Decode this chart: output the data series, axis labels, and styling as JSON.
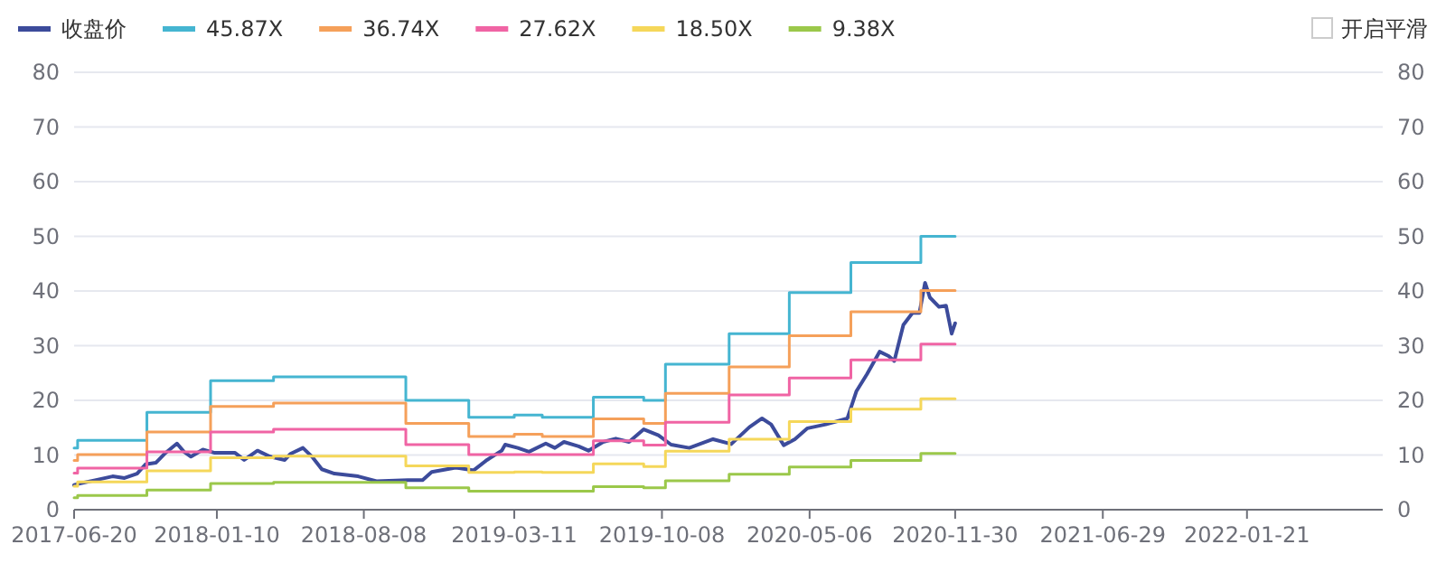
{
  "chart_data": {
    "type": "line",
    "x": [
      "2017-06-20",
      "2017-06-25",
      "2017-10-02",
      "2018-01-01",
      "2018-04-01",
      "2018-10-07",
      "2019-01-05",
      "2019-03-11",
      "2019-04-20",
      "2019-07-02",
      "2019-09-12",
      "2019-10-13",
      "2020-01-12",
      "2020-04-07",
      "2020-07-04",
      "2020-10-12",
      "2020-11-30"
    ],
    "series": [
      {
        "name": "收盘价",
        "type": "line",
        "color": "#3c4b9b",
        "x": [
          "2017-06-20",
          "2017-06-25",
          "2017-07-20",
          "2017-08-14",
          "2017-08-31",
          "2017-09-18",
          "2017-09-30",
          "2017-10-15",
          "2017-10-27",
          "2017-11-14",
          "2017-11-24",
          "2017-12-04",
          "2017-12-21",
          "2018-01-07",
          "2018-02-05",
          "2018-02-18",
          "2018-03-09",
          "2018-03-27",
          "2018-04-17",
          "2018-04-25",
          "2018-05-13",
          "2018-05-26",
          "2018-06-09",
          "2018-06-27",
          "2018-07-31",
          "2018-08-26",
          "2018-10-10",
          "2018-10-31",
          "2018-11-13",
          "2018-12-17",
          "2019-01-12",
          "2019-01-31",
          "2019-02-21",
          "2019-02-26",
          "2019-03-16",
          "2019-04-01",
          "2019-04-25",
          "2019-05-08",
          "2019-05-21",
          "2019-06-11",
          "2019-06-25",
          "2019-07-16",
          "2019-08-03",
          "2019-08-22",
          "2019-09-12",
          "2019-10-03",
          "2019-10-21",
          "2019-11-16",
          "2019-12-20",
          "2020-01-15",
          "2020-02-10",
          "2020-02-28",
          "2020-03-12",
          "2020-03-30",
          "2020-04-15",
          "2020-05-03",
          "2020-05-29",
          "2020-06-29",
          "2020-07-12",
          "2020-07-27",
          "2020-08-14",
          "2020-08-27",
          "2020-09-04",
          "2020-09-17",
          "2020-09-30",
          "2020-10-10",
          "2020-10-18",
          "2020-10-25",
          "2020-11-07",
          "2020-11-17",
          "2020-11-25",
          "2020-11-30"
        ],
        "values": [
          4.5,
          4.7,
          5.4,
          6.1,
          5.8,
          6.6,
          8.3,
          8.6,
          10.2,
          12.1,
          10.6,
          9.7,
          11.0,
          10.4,
          10.4,
          9.1,
          10.8,
          9.7,
          9.1,
          10.2,
          11.3,
          9.7,
          7.4,
          6.6,
          6.1,
          5.2,
          5.4,
          5.4,
          6.9,
          7.7,
          7.2,
          9.1,
          10.8,
          11.9,
          11.3,
          10.6,
          12.1,
          11.3,
          12.4,
          11.6,
          10.8,
          12.4,
          13.0,
          12.4,
          14.7,
          13.6,
          11.9,
          11.3,
          12.9,
          12.0,
          15.1,
          16.7,
          15.6,
          11.8,
          12.9,
          14.9,
          15.6,
          16.7,
          21.7,
          24.8,
          28.9,
          28.1,
          27.2,
          33.8,
          36.0,
          36.0,
          41.5,
          38.8,
          37.1,
          37.3,
          32.2,
          34.1
        ]
      },
      {
        "name": "45.87X",
        "type": "step",
        "color": "#45b5d1",
        "values": [
          11.3,
          12.7,
          17.8,
          23.6,
          24.3,
          20.0,
          16.9,
          17.3,
          16.9,
          20.6,
          20.0,
          26.6,
          32.2,
          39.7,
          45.2,
          50.0,
          50.0
        ]
      },
      {
        "name": "36.74X",
        "type": "step",
        "color": "#f5a05a",
        "values": [
          9.0,
          10.1,
          14.2,
          18.9,
          19.5,
          15.8,
          13.4,
          13.8,
          13.4,
          16.6,
          15.8,
          21.3,
          26.1,
          31.8,
          36.2,
          40.1,
          40.1
        ]
      },
      {
        "name": "27.62X",
        "type": "step",
        "color": "#f064a4",
        "values": [
          6.7,
          7.6,
          10.6,
          14.2,
          14.7,
          11.9,
          10.1,
          10.1,
          10.1,
          12.6,
          11.8,
          16.0,
          21.0,
          24.1,
          27.4,
          30.3,
          30.3
        ]
      },
      {
        "name": "18.50X",
        "type": "step",
        "color": "#f5d75a",
        "values": [
          4.3,
          5.1,
          7.1,
          9.5,
          9.8,
          8.0,
          6.8,
          6.9,
          6.8,
          8.4,
          7.9,
          10.7,
          12.9,
          16.1,
          18.4,
          20.3,
          20.3
        ]
      },
      {
        "name": "9.38X",
        "type": "step",
        "color": "#9bc84a",
        "values": [
          2.2,
          2.6,
          3.6,
          4.8,
          5.0,
          4.0,
          3.4,
          3.4,
          3.4,
          4.2,
          4.0,
          5.3,
          6.5,
          7.8,
          9.0,
          10.3,
          10.3
        ]
      }
    ],
    "xlim": [
      "2017-06-20",
      "2022-08-03"
    ],
    "xticks": [
      "2017-06-20",
      "2018-01-10",
      "2018-08-08",
      "2019-03-11",
      "2019-10-08",
      "2020-05-06",
      "2020-11-30",
      "2021-06-29",
      "2022-01-21"
    ],
    "ylim": [
      0,
      80
    ],
    "yticks": [
      0,
      10,
      20,
      30,
      40,
      50,
      60,
      70,
      80
    ],
    "y2lim": [
      0,
      80
    ],
    "y2ticks": [
      0,
      10,
      20,
      30,
      40,
      50,
      60,
      70,
      80
    ],
    "grid": "y",
    "legend": "top left",
    "marker": "none",
    "annotations": [
      "开启平滑"
    ]
  }
}
